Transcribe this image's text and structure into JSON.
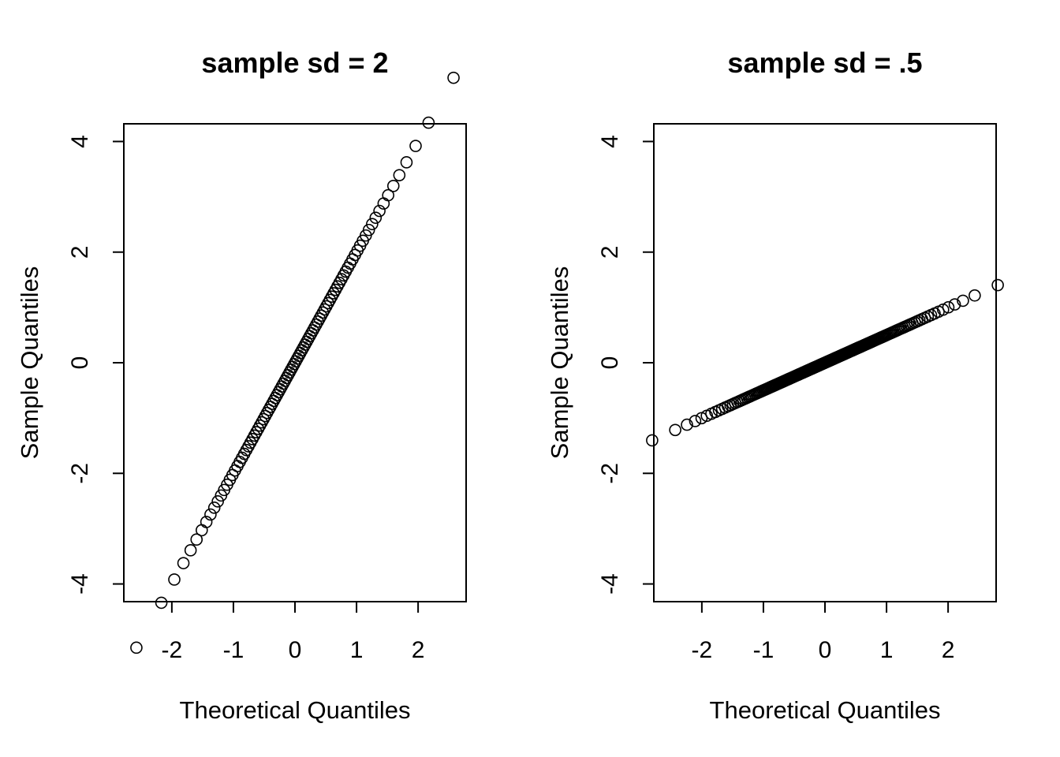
{
  "chart_data": [
    {
      "type": "scatter",
      "title": "sample sd = 2",
      "xlabel": "Theoretical Quantiles",
      "ylabel": "Sample Quantiles",
      "xlim": [
        -2.78,
        2.78
      ],
      "ylim": [
        -4.32,
        4.32
      ],
      "xticks": [
        -2,
        -1,
        0,
        1,
        2
      ],
      "xtick_labels": [
        "-2",
        "-1",
        "0",
        "1",
        "2"
      ],
      "yticks": [
        -4,
        -2,
        0,
        2,
        4
      ],
      "ytick_labels": [
        "-4",
        "-2",
        "0",
        "2",
        "4"
      ],
      "grid": false,
      "legend": "none",
      "n_points": 100,
      "sd": 2,
      "point_style": "open circle"
    },
    {
      "type": "scatter",
      "title": "sample sd = .5",
      "xlabel": "Theoretical Quantiles",
      "ylabel": "Sample Quantiles",
      "xlim": [
        -2.78,
        2.78
      ],
      "ylim": [
        -4.32,
        4.32
      ],
      "xticks": [
        -2,
        -1,
        0,
        1,
        2
      ],
      "xtick_labels": [
        "-2",
        "-1",
        "0",
        "1",
        "2"
      ],
      "yticks": [
        -4,
        -2,
        0,
        2,
        4
      ],
      "ytick_labels": [
        "-4",
        "-2",
        "0",
        "2",
        "4"
      ],
      "grid": false,
      "legend": "none",
      "n_points": 200,
      "sd": 0.5,
      "point_style": "open circle"
    }
  ]
}
